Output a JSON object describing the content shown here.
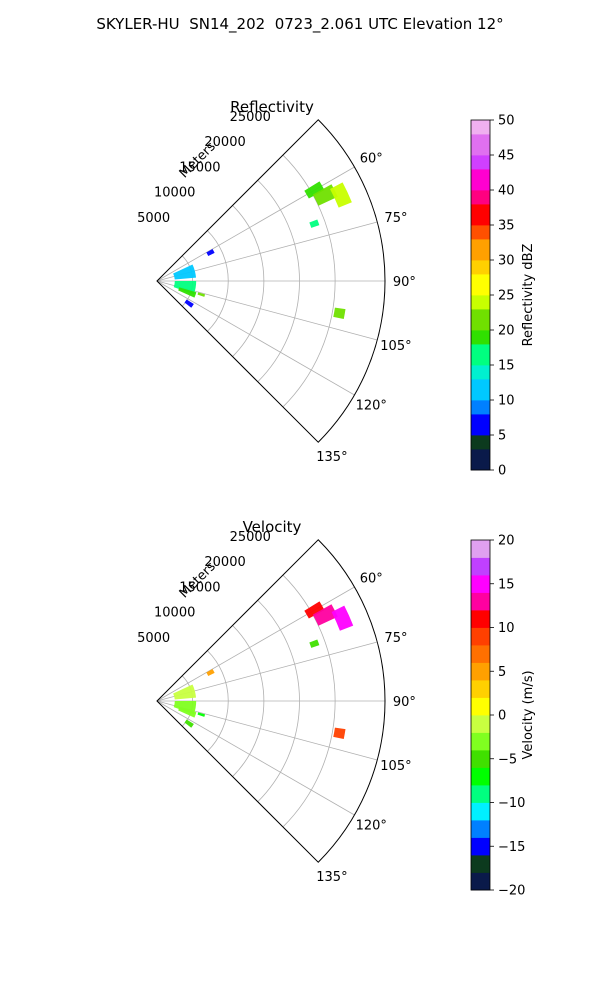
{
  "title": "SKYLER-HU  SN14_202  0723_2.061 UTC Elevation 12°",
  "chart_data": [
    {
      "type": "polar-sector",
      "title": "Reflectivity",
      "radial_axis_label": "Meters",
      "radial_ticks": [
        5000,
        10000,
        15000,
        20000,
        25000
      ],
      "radial_tick_labels": [
        "5000",
        "10000",
        "15000",
        "20000",
        "25000"
      ],
      "radial_max": 32000,
      "azimuth_range_deg": [
        45,
        135
      ],
      "azimuth_ticks_deg": [
        60,
        75,
        90,
        105,
        120,
        135
      ],
      "azimuth_tick_labels": [
        "60°",
        "75°",
        "90°",
        "105°",
        "120°",
        "135°"
      ],
      "grid": true,
      "colorbar": {
        "label": "Reflectivity dBZ",
        "min": 0,
        "max": 50,
        "ticks": [
          0,
          5,
          10,
          15,
          20,
          25,
          30,
          35,
          40,
          45,
          50
        ],
        "tick_labels": [
          "0",
          "5",
          "10",
          "15",
          "20",
          "25",
          "30",
          "35",
          "40",
          "45",
          "50"
        ],
        "colors": [
          {
            "v": 0,
            "c": "#0a1a4a"
          },
          {
            "v": 3,
            "c": "#0c3a1e"
          },
          {
            "v": 5,
            "c": "#0000ff"
          },
          {
            "v": 8,
            "c": "#0080ff"
          },
          {
            "v": 10,
            "c": "#00c8ff"
          },
          {
            "v": 13,
            "c": "#00f0d0"
          },
          {
            "v": 15,
            "c": "#00ff80"
          },
          {
            "v": 18,
            "c": "#30e000"
          },
          {
            "v": 20,
            "c": "#70e000"
          },
          {
            "v": 23,
            "c": "#c8ff00"
          },
          {
            "v": 25,
            "c": "#ffff00"
          },
          {
            "v": 28,
            "c": "#ffd000"
          },
          {
            "v": 30,
            "c": "#ffa000"
          },
          {
            "v": 33,
            "c": "#ff5000"
          },
          {
            "v": 35,
            "c": "#ff0000"
          },
          {
            "v": 38,
            "c": "#ff0080"
          },
          {
            "v": 40,
            "c": "#ff00d0"
          },
          {
            "v": 43,
            "c": "#d040ff"
          },
          {
            "v": 45,
            "c": "#e070f0"
          },
          {
            "v": 48,
            "c": "#f0b0f0"
          },
          {
            "v": 50,
            "c": "#fff0ff"
          }
        ]
      },
      "echoes": [
        {
          "az": 60,
          "r": 25500,
          "daz": 3,
          "dr": 2500,
          "value": 18
        },
        {
          "az": 63,
          "r": 26500,
          "daz": 4,
          "dr": 3000,
          "value": 20
        },
        {
          "az": 65,
          "r": 28500,
          "daz": 6,
          "dr": 2000,
          "value": 24
        },
        {
          "az": 70,
          "r": 23500,
          "daz": 2,
          "dr": 1200,
          "value": 16
        },
        {
          "az": 100,
          "r": 26000,
          "daz": 3,
          "dr": 1500,
          "value": 20
        },
        {
          "az": 62,
          "r": 8500,
          "daz": 4,
          "dr": 1000,
          "value": 5
        },
        {
          "az": 75,
          "r": 4000,
          "daz": 20,
          "dr": 3000,
          "value": 10
        },
        {
          "az": 100,
          "r": 4000,
          "daz": 20,
          "dr": 3000,
          "value": 16
        },
        {
          "az": 110,
          "r": 4500,
          "daz": 8,
          "dr": 2500,
          "value": 18
        },
        {
          "az": 107,
          "r": 6500,
          "daz": 3,
          "dr": 1000,
          "value": 20
        },
        {
          "az": 125,
          "r": 5500,
          "daz": 6,
          "dr": 1200,
          "value": 5
        }
      ]
    },
    {
      "type": "polar-sector",
      "title": "Velocity",
      "radial_axis_label": "Meters",
      "radial_ticks": [
        5000,
        10000,
        15000,
        20000,
        25000
      ],
      "radial_tick_labels": [
        "5000",
        "10000",
        "15000",
        "20000",
        "25000"
      ],
      "radial_max": 32000,
      "azimuth_range_deg": [
        45,
        135
      ],
      "azimuth_ticks_deg": [
        60,
        75,
        90,
        105,
        120,
        135
      ],
      "azimuth_tick_labels": [
        "60°",
        "75°",
        "90°",
        "105°",
        "120°",
        "135°"
      ],
      "grid": true,
      "colorbar": {
        "label": "Velocity (m/s)",
        "min": -20,
        "max": 20,
        "ticks": [
          -20,
          -15,
          -10,
          -5,
          0,
          5,
          10,
          15,
          20
        ],
        "tick_labels": [
          "−20",
          "−15",
          "−10",
          "−5",
          "0",
          "5",
          "10",
          "15",
          "20"
        ],
        "colors": [
          {
            "v": -20,
            "c": "#0a1a4a"
          },
          {
            "v": -18,
            "c": "#0c3a1e"
          },
          {
            "v": -16,
            "c": "#0000ff"
          },
          {
            "v": -14,
            "c": "#0080ff"
          },
          {
            "v": -12,
            "c": "#00f0ff"
          },
          {
            "v": -10,
            "c": "#00ff80"
          },
          {
            "v": -8,
            "c": "#00ff00"
          },
          {
            "v": -6,
            "c": "#40e000"
          },
          {
            "v": -4,
            "c": "#80ff20"
          },
          {
            "v": -2,
            "c": "#c8ff40"
          },
          {
            "v": 0,
            "c": "#ffff00"
          },
          {
            "v": 2,
            "c": "#ffd000"
          },
          {
            "v": 4,
            "c": "#ffa000"
          },
          {
            "v": 6,
            "c": "#ff7000"
          },
          {
            "v": 8,
            "c": "#ff4000"
          },
          {
            "v": 10,
            "c": "#ff0000"
          },
          {
            "v": 12,
            "c": "#ff00a0"
          },
          {
            "v": 14,
            "c": "#ff00ff"
          },
          {
            "v": 16,
            "c": "#c040ff"
          },
          {
            "v": 18,
            "c": "#e0a0f0"
          },
          {
            "v": 20,
            "c": "#fff0ff"
          }
        ]
      },
      "echoes": [
        {
          "az": 60,
          "r": 25500,
          "daz": 3,
          "dr": 2500,
          "value": 10
        },
        {
          "az": 63,
          "r": 26500,
          "daz": 4,
          "dr": 3000,
          "value": 12
        },
        {
          "az": 66,
          "r": 28500,
          "daz": 6,
          "dr": 2000,
          "value": 14
        },
        {
          "az": 70,
          "r": 23500,
          "daz": 2,
          "dr": 1200,
          "value": -6
        },
        {
          "az": 100,
          "r": 26000,
          "daz": 3,
          "dr": 1500,
          "value": 8
        },
        {
          "az": 62,
          "r": 8500,
          "daz": 4,
          "dr": 1000,
          "value": 4
        },
        {
          "az": 75,
          "r": 4000,
          "daz": 20,
          "dr": 3000,
          "value": -2
        },
        {
          "az": 100,
          "r": 4000,
          "daz": 20,
          "dr": 3000,
          "value": -4
        },
        {
          "az": 110,
          "r": 4500,
          "daz": 8,
          "dr": 2500,
          "value": -3
        },
        {
          "az": 107,
          "r": 6500,
          "daz": 3,
          "dr": 1000,
          "value": -7
        },
        {
          "az": 125,
          "r": 5500,
          "daz": 6,
          "dr": 1200,
          "value": -5
        }
      ]
    }
  ]
}
